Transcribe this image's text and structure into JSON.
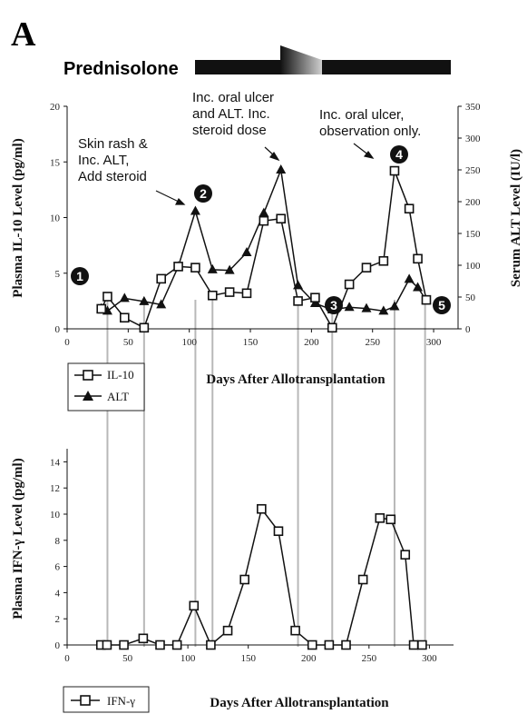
{
  "panel_label": "A",
  "drug_label": "Prednisolone",
  "colors": {
    "line": "#111111",
    "guide": "#b8b8b8",
    "bar": "#111111"
  },
  "annotations": [
    {
      "id": "a1",
      "lines": [
        "Skin rash &",
        "Inc. ALT,",
        "Add steroid"
      ]
    },
    {
      "id": "a2",
      "lines": [
        "Inc. oral ulcer",
        "and ALT. Inc.",
        "steroid dose"
      ]
    },
    {
      "id": "a3",
      "lines": [
        "Inc. oral ulcer,",
        "observation only."
      ]
    }
  ],
  "markers": [
    {
      "label": "1",
      "day": 33
    },
    {
      "label": "2",
      "day": 118
    },
    {
      "label": "3",
      "day": 217
    },
    {
      "label": "4",
      "day": 272
    },
    {
      "label": "5",
      "day": 305
    }
  ],
  "guide_days": [
    33,
    63,
    105,
    119,
    189,
    217,
    268,
    293
  ],
  "chart_data": [
    {
      "type": "line",
      "ylabel": "Plasma IL-10 Level (pg/ml)",
      "y2label": "Serum ALT Level (IU/l)",
      "xlabel": "Days After Allotransplantation",
      "xlim": [
        0,
        320
      ],
      "xticks": [
        0,
        50,
        100,
        150,
        200,
        250,
        300
      ],
      "ylim": [
        0,
        20
      ],
      "yticks": [
        0,
        5,
        10,
        15,
        20
      ],
      "y2lim": [
        0,
        350
      ],
      "y2ticks": [
        0,
        50,
        100,
        150,
        200,
        250,
        300,
        350
      ],
      "legend": "bottom-left",
      "series": [
        {
          "name": "IL-10",
          "axis": "left",
          "marker": "open-square",
          "x": [
            28,
            33,
            47,
            63,
            77,
            91,
            105,
            119,
            133,
            147,
            161,
            175,
            189,
            203,
            217,
            231,
            245,
            259,
            268,
            280,
            287,
            294
          ],
          "y": [
            1.8,
            2.9,
            1.0,
            0.1,
            4.5,
            5.6,
            5.5,
            3.0,
            3.3,
            3.2,
            9.7,
            9.9,
            2.5,
            2.8,
            0.1,
            4.0,
            5.5,
            6.1,
            14.2,
            10.8,
            6.3,
            2.6
          ]
        },
        {
          "name": "ALT",
          "axis": "right",
          "marker": "filled-triangle",
          "x": [
            28,
            33,
            47,
            63,
            77,
            91,
            105,
            119,
            133,
            147,
            161,
            175,
            189,
            203,
            217,
            231,
            245,
            259,
            268,
            280,
            287,
            294
          ],
          "y": [
            32,
            28,
            48,
            43,
            38,
            98,
            185,
            93,
            92,
            120,
            182,
            250,
            68,
            40,
            30,
            34,
            32,
            28,
            35,
            78,
            65,
            45
          ]
        }
      ]
    },
    {
      "type": "line",
      "ylabel": "Plasma IFN-γ Level (pg/ml)",
      "xlabel": "Days After Allotransplantation",
      "xlim": [
        0,
        320
      ],
      "xticks": [
        0,
        50,
        100,
        150,
        200,
        250,
        300
      ],
      "ylim": [
        0,
        15
      ],
      "yticks": [
        0,
        2,
        4,
        6,
        8,
        10,
        12,
        14
      ],
      "legend": "bottom-left",
      "series": [
        {
          "name": "IFN-γ",
          "marker": "open-square",
          "x": [
            28,
            33,
            47,
            63,
            77,
            91,
            105,
            119,
            133,
            147,
            161,
            175,
            189,
            203,
            217,
            231,
            245,
            259,
            268,
            280,
            287,
            294
          ],
          "y": [
            0.0,
            0.0,
            0.0,
            0.5,
            0.0,
            0.0,
            3.0,
            0.0,
            1.1,
            5.0,
            10.4,
            8.7,
            1.1,
            0.0,
            0.0,
            0.0,
            5.0,
            9.7,
            9.6,
            6.9,
            0.0,
            0.0
          ]
        }
      ]
    }
  ]
}
